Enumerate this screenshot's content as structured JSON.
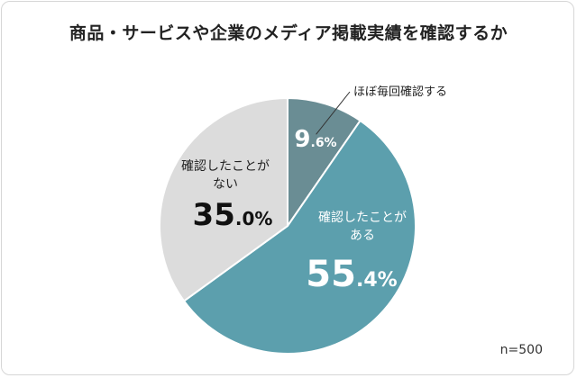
{
  "title": "商品・サービスや企業のメディア掲載実績を確認するか",
  "note": "n=500",
  "chart_data": {
    "type": "pie",
    "title": "商品・サービスや企業のメディア掲載実績を確認するか",
    "unit": "%",
    "slices": [
      {
        "label": "ほぼ毎回確認する",
        "label_lines": [
          "ほぼ毎回確認する"
        ],
        "value": 9.6,
        "int": "9",
        "dec": ".6%",
        "color": "#6a8d94",
        "text_color": "#ffffff",
        "label_color": "#222222"
      },
      {
        "label": "確認したことがある",
        "label_lines": [
          "確認したことが",
          "ある"
        ],
        "value": 55.4,
        "int": "55",
        "dec": ".4%",
        "color": "#5c9fad",
        "text_color": "#ffffff",
        "label_color": "#ffffff"
      },
      {
        "label": "確認したことがない",
        "label_lines": [
          "確認したことが",
          "ない"
        ],
        "value": 35.0,
        "int": "35",
        "dec": ".0%",
        "color": "#dcdcdc",
        "text_color": "#111111",
        "label_color": "#222222"
      }
    ]
  }
}
